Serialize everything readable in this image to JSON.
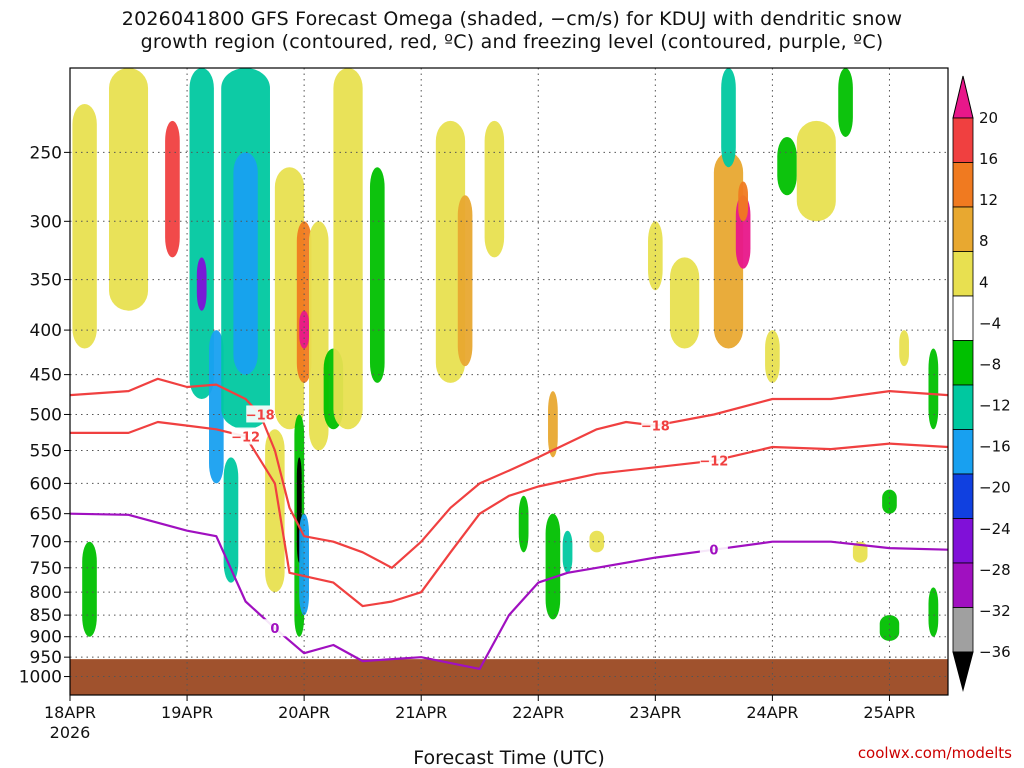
{
  "title_line1": "2026041800 GFS Forecast Omega (shaded, −cm/s) for KDUJ with dendritic snow",
  "title_line2": "growth region (contoured, red, ºC) and freezing level (contoured, purple, ºC)",
  "credit": "coolwx.com/modelts",
  "chart_data": {
    "type": "heatmap",
    "title": "2026041800 GFS Forecast Omega (shaded, −cm/s) for KDUJ with dendritic snow growth region (contoured, red, ºC) and freezing level (contoured, purple, ºC)",
    "xlabel": "Forecast Time (UTC)",
    "ylabel": "",
    "x_ticks": [
      "18APR",
      "19APR",
      "20APR",
      "21APR",
      "22APR",
      "23APR",
      "24APR",
      "25APR"
    ],
    "x_year": "2026",
    "xlim": [
      "2026-04-18T00",
      "2026-04-25T12"
    ],
    "y_ticks": [
      250,
      300,
      350,
      400,
      450,
      500,
      550,
      600,
      650,
      700,
      750,
      800,
      850,
      900,
      950,
      1000
    ],
    "ylim": [
      200,
      1050
    ],
    "y_scale": "log",
    "grid": true,
    "colorbar": {
      "labels": [
        "20",
        "16",
        "12",
        "8",
        "4",
        "−4",
        "−8",
        "−12",
        "−16",
        "−20",
        "−24",
        "−28",
        "−32",
        "−36"
      ],
      "colors": [
        "#e8178a",
        "#f04040",
        "#f07a20",
        "#e8a830",
        "#e8e050",
        "#ffffff",
        "#00c000",
        "#00c8a0",
        "#18a0f0",
        "#1040e0",
        "#8010d8",
        "#a010c0",
        "#a0a0a0",
        "#000000"
      ]
    },
    "contours": [
      {
        "name": "-18",
        "color": "#f04040",
        "label": "−18",
        "points": [
          [
            "2026-04-18T00",
            475
          ],
          [
            "2026-04-18T12",
            470
          ],
          [
            "2026-04-18T18",
            455
          ],
          [
            "2026-04-19T00",
            465
          ],
          [
            "2026-04-19T06",
            462
          ],
          [
            "2026-04-19T12",
            480
          ],
          [
            "2026-04-19T15",
            500
          ],
          [
            "2026-04-19T18",
            550
          ],
          [
            "2026-04-19T21",
            640
          ],
          [
            "2026-04-20T00",
            690
          ],
          [
            "2026-04-20T06",
            700
          ],
          [
            "2026-04-20T12",
            720
          ],
          [
            "2026-04-20T18",
            750
          ],
          [
            "2026-04-21T00",
            700
          ],
          [
            "2026-04-21T06",
            640
          ],
          [
            "2026-04-21T12",
            600
          ],
          [
            "2026-04-21T18",
            580
          ],
          [
            "2026-04-22T00",
            560
          ],
          [
            "2026-04-22T12",
            520
          ],
          [
            "2026-04-22T18",
            510
          ],
          [
            "2026-04-23T00",
            515
          ],
          [
            "2026-04-23T12",
            500
          ],
          [
            "2026-04-24T00",
            480
          ],
          [
            "2026-04-24T12",
            480
          ],
          [
            "2026-04-25T00",
            470
          ],
          [
            "2026-04-25T12",
            475
          ]
        ]
      },
      {
        "name": "-12",
        "color": "#f04040",
        "label": "−12",
        "points": [
          [
            "2026-04-18T00",
            525
          ],
          [
            "2026-04-18T12",
            525
          ],
          [
            "2026-04-18T18",
            510
          ],
          [
            "2026-04-19T00",
            515
          ],
          [
            "2026-04-19T06",
            520
          ],
          [
            "2026-04-19T12",
            530
          ],
          [
            "2026-04-19T18",
            600
          ],
          [
            "2026-04-19T21",
            760
          ],
          [
            "2026-04-20T06",
            780
          ],
          [
            "2026-04-20T12",
            830
          ],
          [
            "2026-04-20T18",
            820
          ],
          [
            "2026-04-21T00",
            800
          ],
          [
            "2026-04-21T06",
            720
          ],
          [
            "2026-04-21T12",
            650
          ],
          [
            "2026-04-21T18",
            620
          ],
          [
            "2026-04-22T00",
            605
          ],
          [
            "2026-04-22T12",
            585
          ],
          [
            "2026-04-23T00",
            575
          ],
          [
            "2026-04-23T12",
            565
          ],
          [
            "2026-04-24T00",
            545
          ],
          [
            "2026-04-24T12",
            548
          ],
          [
            "2026-04-25T00",
            540
          ],
          [
            "2026-04-25T12",
            545
          ]
        ]
      },
      {
        "name": "0",
        "color": "#a010c0",
        "label": "0",
        "points": [
          [
            "2026-04-18T00",
            650
          ],
          [
            "2026-04-18T12",
            652
          ],
          [
            "2026-04-19T00",
            680
          ],
          [
            "2026-04-19T06",
            690
          ],
          [
            "2026-04-19T12",
            820
          ],
          [
            "2026-04-19T18",
            880
          ],
          [
            "2026-04-20T00",
            940
          ],
          [
            "2026-04-20T06",
            920
          ],
          [
            "2026-04-20T12",
            960
          ],
          [
            "2026-04-21T00",
            950
          ],
          [
            "2026-04-21T12",
            980
          ],
          [
            "2026-04-21T18",
            850
          ],
          [
            "2026-04-22T00",
            780
          ],
          [
            "2026-04-22T06",
            760
          ],
          [
            "2026-04-22T12",
            750
          ],
          [
            "2026-04-23T00",
            730
          ],
          [
            "2026-04-23T12",
            715
          ],
          [
            "2026-04-24T00",
            700
          ],
          [
            "2026-04-24T12",
            700
          ],
          [
            "2026-04-25T00",
            712
          ],
          [
            "2026-04-25T12",
            715
          ]
        ]
      }
    ],
    "surface_pressure": 955
  }
}
